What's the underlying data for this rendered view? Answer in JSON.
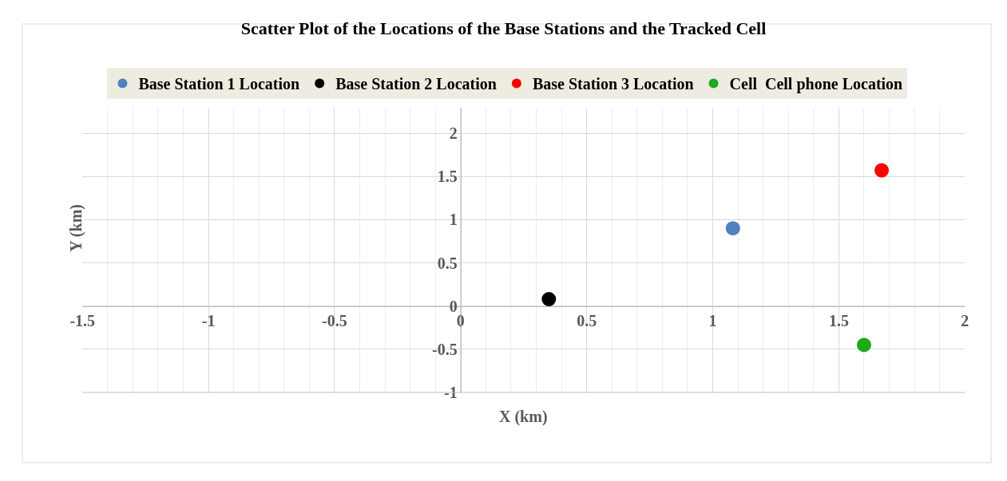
{
  "chart_data": {
    "type": "scatter",
    "title": "Scatter Plot of the Locations of the Base Stations and the Tracked Cell",
    "xlabel": "X (km)",
    "ylabel": "Y (km)",
    "series": [
      {
        "name": "Base Station 1 Location",
        "color": "#4f81bd",
        "x": [
          1.08
        ],
        "values": [
          0.9
        ]
      },
      {
        "name": "Base Station 2 Location",
        "color": "#000000",
        "x": [
          0.35
        ],
        "values": [
          0.08
        ]
      },
      {
        "name": "Base Station 3 Location",
        "color": "#ff0000",
        "x": [
          1.67
        ],
        "values": [
          1.57
        ]
      },
      {
        "name": "Cell  Cell phone Location",
        "color": "#1aaa1a",
        "x": [
          1.6
        ],
        "values": [
          -0.45
        ]
      }
    ],
    "xlim": [
      -1.5,
      2
    ],
    "ylim": [
      -1,
      2.3
    ],
    "xticks": [
      -1.5,
      -1,
      -0.5,
      0,
      0.5,
      1,
      1.5,
      2
    ],
    "yticks": [
      -1,
      -0.5,
      0,
      0.5,
      1,
      1.5,
      2
    ],
    "grid": true,
    "legend": "top",
    "marker": "circle"
  }
}
